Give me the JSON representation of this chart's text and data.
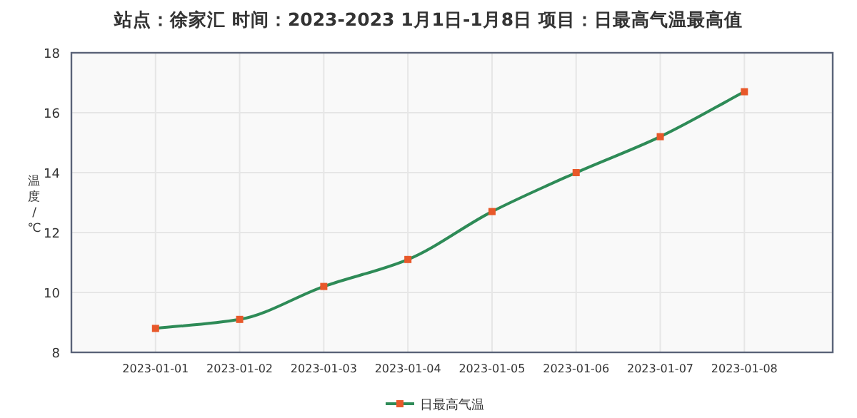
{
  "chart_data": {
    "type": "line",
    "title": "站点：徐家汇 时间：2023-2023  1月1日-1月8日 项目：日最高气温最高值",
    "ylabel": "温度/℃",
    "categories": [
      "2023-01-01",
      "2023-01-02",
      "2023-01-03",
      "2023-01-04",
      "2023-01-05",
      "2023-01-06",
      "2023-01-07",
      "2023-01-08"
    ],
    "series": [
      {
        "name": "日最高气温",
        "color": "#2e8b57",
        "colors": [
          "#e8582a",
          "#e8582a",
          "#e8582a",
          "#e8582a",
          "#e8582a",
          "#e8582a",
          "#e8582a",
          "#e8582a"
        ],
        "values": [
          8.8,
          9.1,
          10.2,
          11.1,
          12.7,
          14.0,
          15.2,
          16.7
        ]
      }
    ],
    "ylim": [
      8,
      18
    ],
    "yticks": [
      8,
      10,
      12,
      14,
      16,
      18
    ],
    "grid": true,
    "legend": "bottom",
    "marker": "square",
    "line_style": "solid"
  }
}
